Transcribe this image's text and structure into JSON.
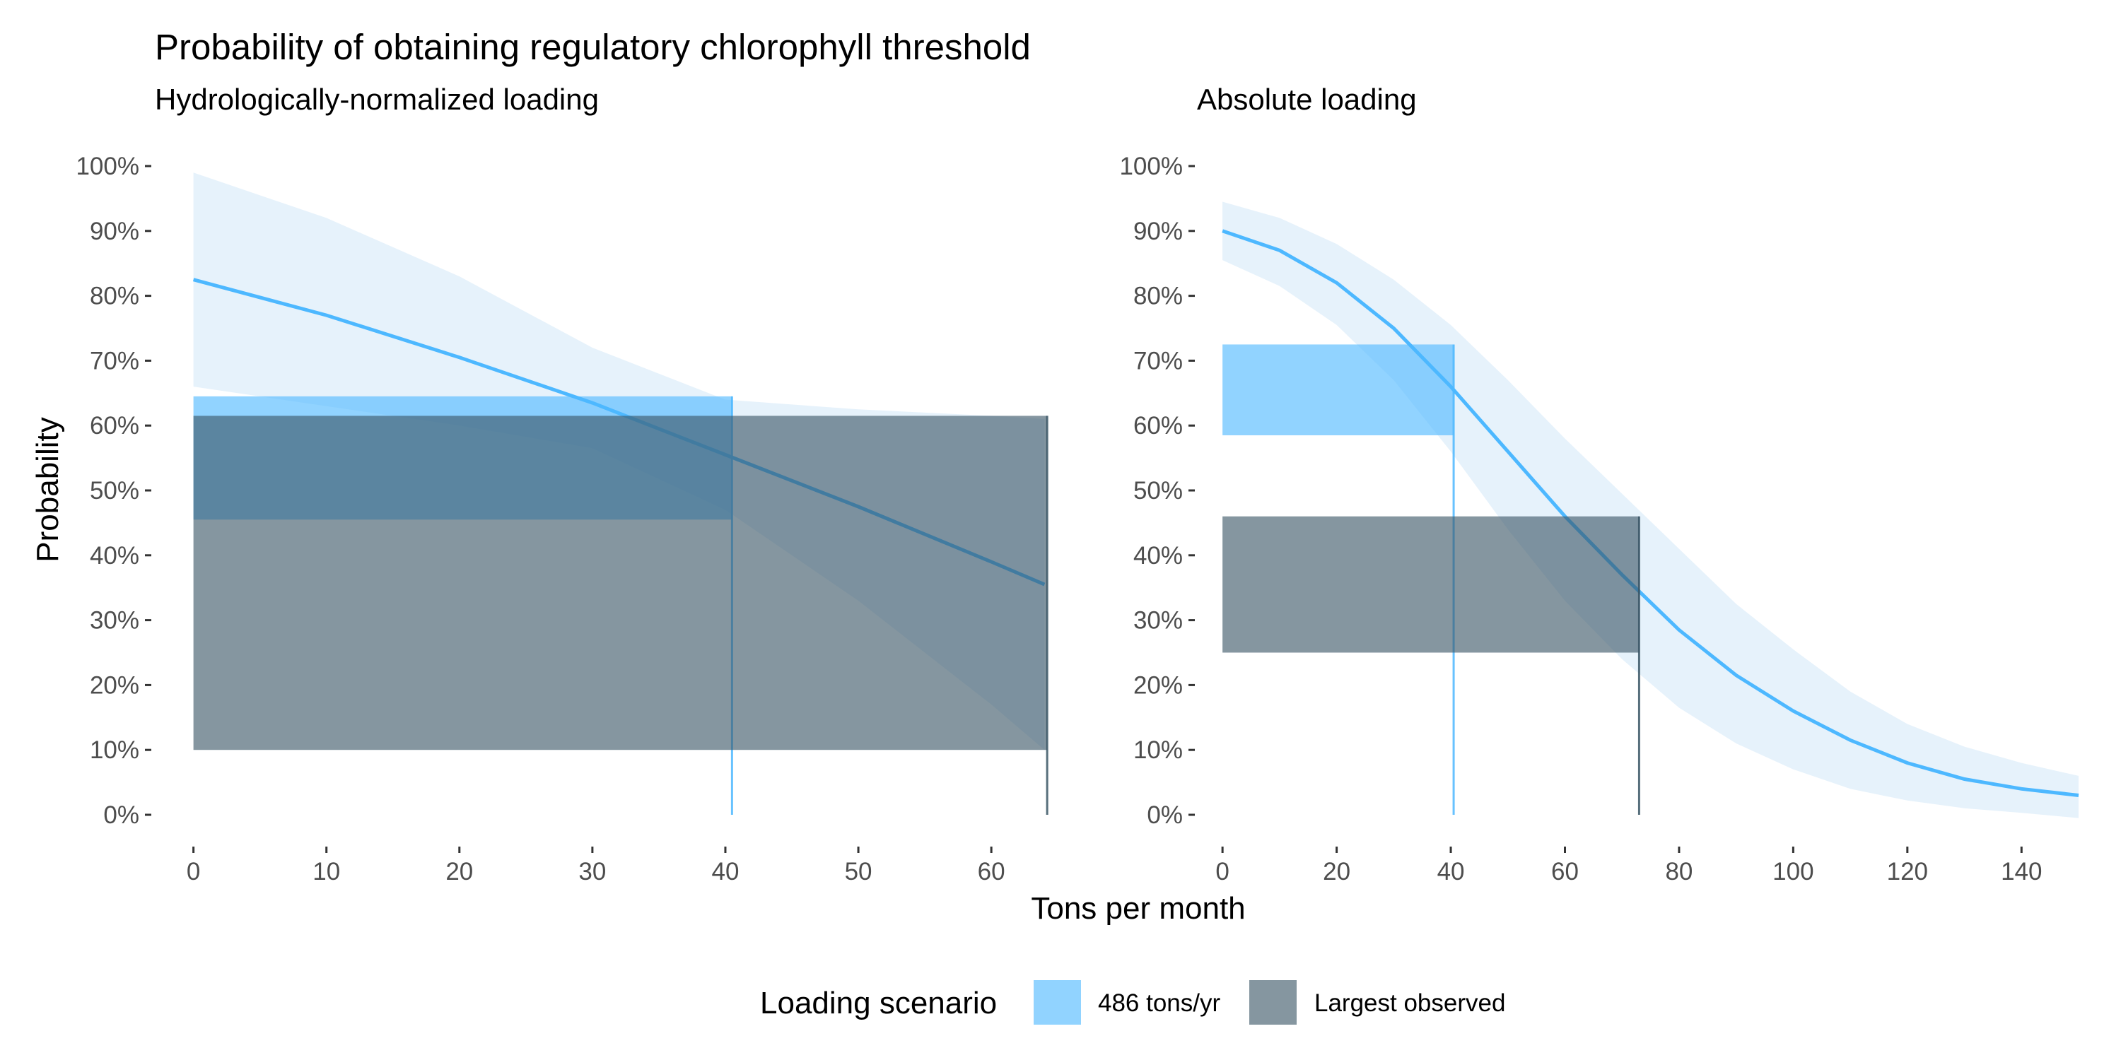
{
  "chart_data": {
    "type": "line",
    "title": "Probability of obtaining regulatory chlorophyll threshold",
    "xlabel": "Tons per month",
    "ylabel": "Probability",
    "legend": {
      "title": "Loading scenario",
      "position": "bottom",
      "entries": [
        {
          "label": "486 tons/yr",
          "color": "#4db8ff"
        },
        {
          "label": "Largest observed",
          "color": "#3a5666"
        }
      ]
    },
    "colors": {
      "line": "#4db8ff",
      "ribbon": "#d6eaf8",
      "scenario_486": "#4db8ff",
      "scenario_largest": "#3a5666"
    },
    "yticks": [
      "0%",
      "10%",
      "20%",
      "30%",
      "40%",
      "50%",
      "60%",
      "70%",
      "80%",
      "90%",
      "100%"
    ],
    "panels": [
      {
        "subtitle": "Hydrologically-normalized loading",
        "xlim": [
          -2,
          66
        ],
        "ylim": [
          0,
          1
        ],
        "xticks": [
          0,
          10,
          20,
          30,
          40,
          50,
          60
        ],
        "xtick_labels": [
          "0",
          "10",
          "20",
          "30",
          "40",
          "50",
          "60"
        ],
        "curve": {
          "x": [
            0,
            10,
            20,
            30,
            40,
            50,
            60,
            64
          ],
          "y": [
            0.825,
            0.77,
            0.705,
            0.635,
            0.555,
            0.475,
            0.39,
            0.355
          ]
        },
        "ci": {
          "x": [
            0,
            10,
            20,
            30,
            40,
            50,
            60,
            64
          ],
          "lower": [
            0.66,
            0.63,
            0.6,
            0.565,
            0.47,
            0.33,
            0.17,
            0.1
          ],
          "upper": [
            0.99,
            0.92,
            0.83,
            0.72,
            0.64,
            0.625,
            0.615,
            0.61
          ]
        },
        "scenarios": [
          {
            "name": "486 tons/yr",
            "load": 40.5,
            "prob_low": 0.455,
            "prob_high": 0.645
          },
          {
            "name": "Largest observed",
            "load": 64.2,
            "prob_low": 0.1,
            "prob_high": 0.615
          }
        ]
      },
      {
        "subtitle": "Absolute loading",
        "xlim": [
          -2,
          150
        ],
        "ylim": [
          0,
          1
        ],
        "xticks": [
          0,
          20,
          40,
          60,
          80,
          100,
          120,
          140
        ],
        "xtick_labels": [
          "0",
          "20",
          "40",
          "60",
          "80",
          "100",
          "120",
          "140"
        ],
        "curve": {
          "x": [
            0,
            10,
            20,
            30,
            40,
            50,
            60,
            70,
            80,
            90,
            100,
            110,
            120,
            130,
            140,
            150
          ],
          "y": [
            0.9,
            0.87,
            0.82,
            0.75,
            0.66,
            0.56,
            0.46,
            0.37,
            0.285,
            0.215,
            0.16,
            0.115,
            0.08,
            0.055,
            0.04,
            0.03
          ]
        },
        "ci": {
          "x": [
            0,
            10,
            20,
            30,
            40,
            50,
            60,
            70,
            80,
            90,
            100,
            110,
            120,
            130,
            140,
            150
          ],
          "lower": [
            0.855,
            0.815,
            0.755,
            0.67,
            0.56,
            0.44,
            0.33,
            0.24,
            0.165,
            0.11,
            0.07,
            0.04,
            0.022,
            0.01,
            0.003,
            -0.005
          ],
          "upper": [
            0.945,
            0.92,
            0.88,
            0.825,
            0.755,
            0.67,
            0.58,
            0.495,
            0.41,
            0.325,
            0.255,
            0.19,
            0.14,
            0.105,
            0.08,
            0.06
          ]
        },
        "scenarios": [
          {
            "name": "486 tons/yr",
            "load": 40.5,
            "prob_low": 0.585,
            "prob_high": 0.725
          },
          {
            "name": "Largest observed",
            "load": 73,
            "prob_low": 0.25,
            "prob_high": 0.46
          }
        ]
      }
    ]
  }
}
